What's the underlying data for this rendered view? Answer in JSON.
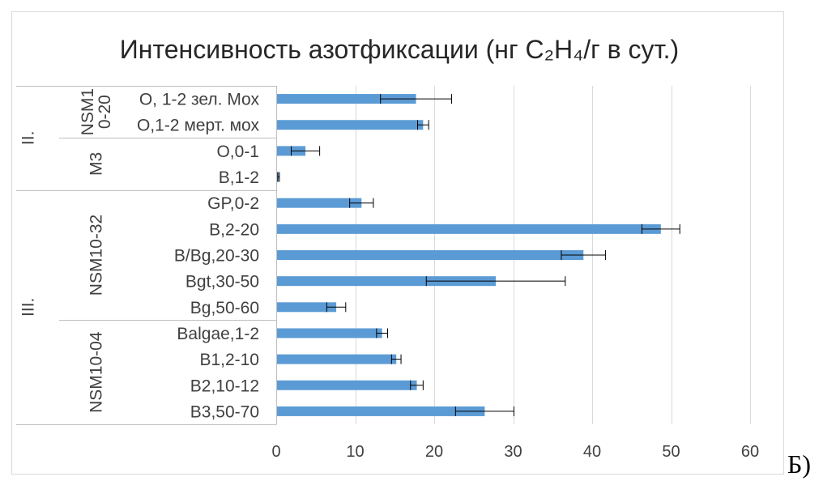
{
  "figure_label": "Б)",
  "chart_data": {
    "type": "bar",
    "horizontal": true,
    "title": "Интенсивность азотфиксации (нг C₂H₄/г в сут.)",
    "xlim": [
      0,
      60
    ],
    "xticks": [
      0,
      10,
      20,
      30,
      40,
      50,
      60
    ],
    "grid": true,
    "legend": false,
    "bar_color": "#5B9BD5",
    "error_bar_color": "#000000",
    "groups": [
      {
        "label": "II.",
        "subgroups": [
          {
            "label": [
              "NSM1",
              "0-20"
            ],
            "bars": [
              {
                "category": "O, 1-2 зел. Мох",
                "value": 17.7,
                "error": 4.5
              },
              {
                "category": "O,1-2 мерт. мох",
                "value": 18.6,
                "error": 0.7
              }
            ]
          },
          {
            "label": [
              "M3"
            ],
            "bars": [
              {
                "category": "O,0-1",
                "value": 3.7,
                "error": 1.8
              },
              {
                "category": "B,1-2",
                "value": 0.3,
                "error": 0.1
              }
            ]
          }
        ]
      },
      {
        "label": "III.",
        "subgroups": [
          {
            "label": [
              "NSM10-32"
            ],
            "bars": [
              {
                "category": "GP,0-2",
                "value": 10.8,
                "error": 1.5
              },
              {
                "category": "B,2-20",
                "value": 48.7,
                "error": 2.4
              },
              {
                "category": "B/Bg,20-30",
                "value": 38.9,
                "error": 2.8
              },
              {
                "category": "Bgt,30-50",
                "value": 27.8,
                "error": 8.8
              },
              {
                "category": "Bg,50-60",
                "value": 7.6,
                "error": 1.2
              }
            ]
          },
          {
            "label": [
              "NSM10-04"
            ],
            "bars": [
              {
                "category": "Balgae,1-2",
                "value": 13.4,
                "error": 0.7
              },
              {
                "category": "B1,2-10",
                "value": 15.2,
                "error": 0.6
              },
              {
                "category": "B2,10-12",
                "value": 17.8,
                "error": 0.8
              },
              {
                "category": "B3,50-70",
                "value": 26.4,
                "error": 3.7
              }
            ]
          }
        ]
      }
    ]
  }
}
